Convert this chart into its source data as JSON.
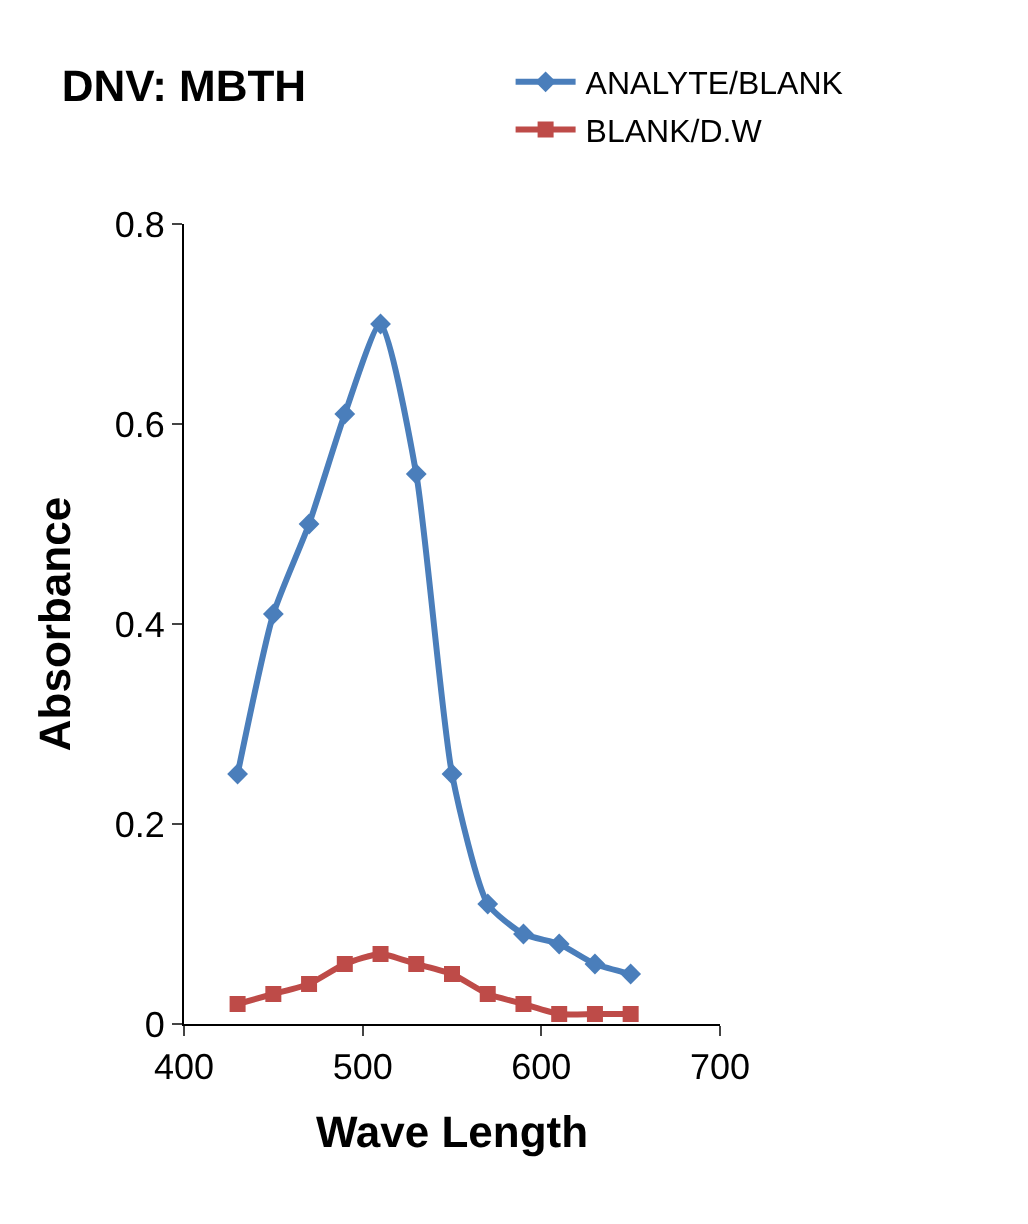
{
  "chart_data": {
    "type": "line",
    "title": "DNV: MBTH",
    "xlabel": "Wave Length",
    "ylabel": "Absorbance",
    "x": [
      430,
      450,
      470,
      490,
      510,
      530,
      550,
      570,
      590,
      610,
      630,
      650
    ],
    "series": [
      {
        "name": "ANALYTE/BLANK",
        "color": "#4a7ebb",
        "marker": "diamond",
        "values": [
          0.25,
          0.41,
          0.5,
          0.61,
          0.7,
          0.55,
          0.25,
          0.12,
          0.09,
          0.08,
          0.06,
          0.05
        ]
      },
      {
        "name": "BLANK/D.W",
        "color": "#be4b48",
        "marker": "square",
        "values": [
          0.02,
          0.03,
          0.04,
          0.06,
          0.07,
          0.06,
          0.05,
          0.03,
          0.02,
          0.01,
          0.01,
          0.01
        ]
      }
    ],
    "xlim": [
      400,
      700
    ],
    "xticks": [
      400,
      500,
      600,
      700
    ],
    "ylim": [
      0,
      0.8
    ],
    "yticks": [
      0,
      0.2,
      0.4,
      0.6,
      0.8
    ],
    "legend": "top right",
    "line_style": "solid"
  }
}
